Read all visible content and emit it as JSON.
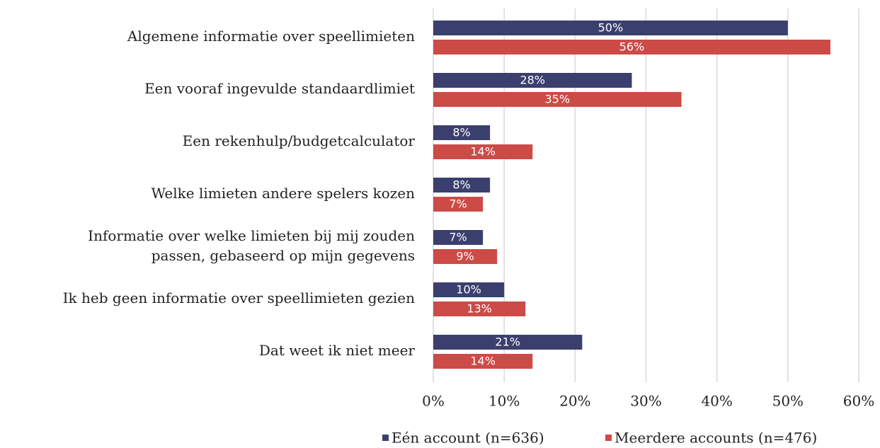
{
  "chart_data": {
    "type": "bar",
    "orientation": "horizontal",
    "categories": [
      "Algemene informatie over speellimieten",
      "Een vooraf ingevulde standaardlimiet",
      "Een rekenhulp/budgetcalculator",
      "Welke limieten andere spelers kozen",
      "Informatie over welke limieten bij mij zouden\npassen, gebaseerd op mijn gegevens",
      "Ik heb geen informatie over speellimieten gezien",
      "Dat weet ik niet meer"
    ],
    "series": [
      {
        "name": "Eén account (n=636)",
        "color": "#3b3f6e",
        "values": [
          50,
          28,
          8,
          8,
          7,
          10,
          21
        ],
        "value_labels": [
          "50%",
          "28%",
          "8%",
          "8%",
          "7%",
          "10%",
          "21%"
        ]
      },
      {
        "name": "Meerdere accounts (n=476)",
        "color": "#cc4b47",
        "values": [
          56,
          35,
          14,
          7,
          9,
          13,
          14
        ],
        "value_labels": [
          "56%",
          "35%",
          "14%",
          "7%",
          "9%",
          "13%",
          "14%"
        ]
      }
    ],
    "xlim": [
      0,
      60
    ],
    "xticks": [
      {
        "value": 0,
        "label": "0%"
      },
      {
        "value": 10,
        "label": "10%"
      },
      {
        "value": 20,
        "label": "20%"
      },
      {
        "value": 30,
        "label": "30%"
      },
      {
        "value": 40,
        "label": "40%"
      },
      {
        "value": 50,
        "label": "50%"
      },
      {
        "value": 60,
        "label": "60%"
      }
    ],
    "grid": true,
    "legend": "bottom"
  }
}
